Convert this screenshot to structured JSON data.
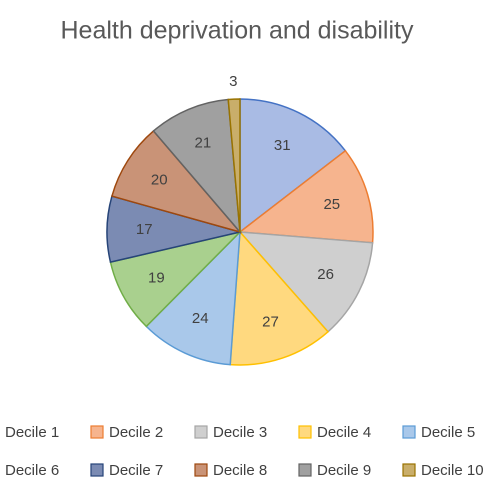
{
  "chart_data": {
    "type": "pie",
    "title": "Health deprivation and disability",
    "categories": [
      "Decile 1",
      "Decile 2",
      "Decile 3",
      "Decile 4",
      "Decile 5",
      "Decile 6",
      "Decile 7",
      "Decile 8",
      "Decile 9",
      "Decile 10"
    ],
    "values": [
      31,
      25,
      26,
      27,
      24,
      19,
      17,
      20,
      21,
      3
    ],
    "colors": [
      "#a9bbe4",
      "#f6b48e",
      "#cfcfcf",
      "#ffd97f",
      "#a9c8ea",
      "#a9d08e",
      "#7b8bb3",
      "#c99377",
      "#a0a0a0",
      "#c9ae6a"
    ],
    "edge_colors": [
      "#4472c4",
      "#ed7d31",
      "#a5a5a5",
      "#ffc000",
      "#5b9bd5",
      "#70ad47",
      "#264478",
      "#9e480e",
      "#636363",
      "#997300"
    ],
    "legend": "bottom"
  }
}
